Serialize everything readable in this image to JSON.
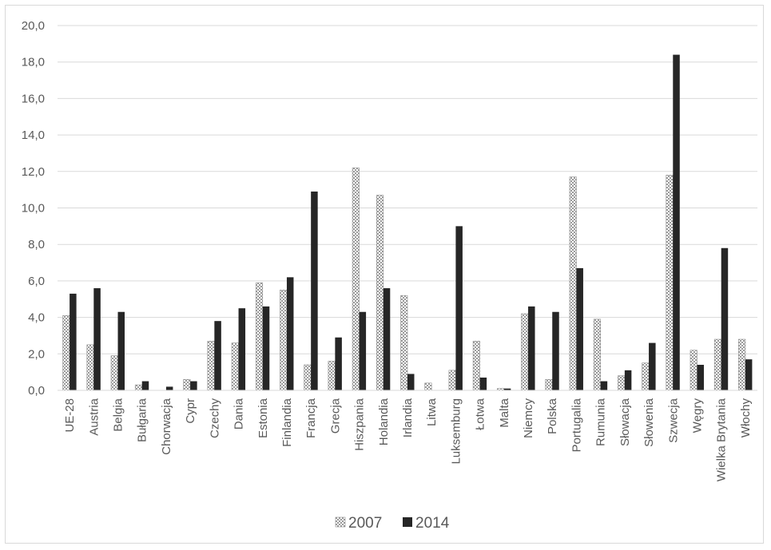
{
  "chart_data": {
    "type": "bar",
    "title": "",
    "xlabel": "",
    "ylabel": "",
    "ylim": [
      0,
      20
    ],
    "yticks": [
      "0,0",
      "2,0",
      "4,0",
      "6,0",
      "8,0",
      "10,0",
      "12,0",
      "14,0",
      "16,0",
      "18,0",
      "20,0"
    ],
    "grid": "horizontal",
    "legend": "bottom",
    "categories": [
      "UE-28",
      "Austria",
      "Belgia",
      "Bułgaria",
      "Chorwacja",
      "Cypr",
      "Czechy",
      "Dania",
      "Estonia",
      "Finlandia",
      "Francja",
      "Grecja",
      "Hiszpania",
      "Holandia",
      "Irlandia",
      "Litwa",
      "Luksemburg",
      "Łotwa",
      "Malta",
      "Niemcy",
      "Polska",
      "Portugalia",
      "Rumunia",
      "Słowacja",
      "Słowenia",
      "Szwecja",
      "Węgry",
      "Wielka Brytania",
      "Włochy"
    ],
    "series": [
      {
        "name": "2007",
        "pattern": "checkered",
        "color": "#a6a6a6",
        "values": [
          4.1,
          2.5,
          1.9,
          0.3,
          0.0,
          0.6,
          2.7,
          2.6,
          5.9,
          5.5,
          1.4,
          1.6,
          12.2,
          10.7,
          5.2,
          0.4,
          1.1,
          2.7,
          0.1,
          4.2,
          0.6,
          11.7,
          3.9,
          0.8,
          1.5,
          11.8,
          2.2,
          2.8,
          2.8
        ]
      },
      {
        "name": "2014",
        "pattern": "solid",
        "color": "#262626",
        "values": [
          5.3,
          5.6,
          4.3,
          0.5,
          0.2,
          0.5,
          3.8,
          4.5,
          4.6,
          6.2,
          10.9,
          2.9,
          4.3,
          5.6,
          0.9,
          0.0,
          9.0,
          0.7,
          0.1,
          4.6,
          4.3,
          6.7,
          0.5,
          1.1,
          2.6,
          18.4,
          1.4,
          7.8,
          1.7
        ]
      }
    ]
  }
}
